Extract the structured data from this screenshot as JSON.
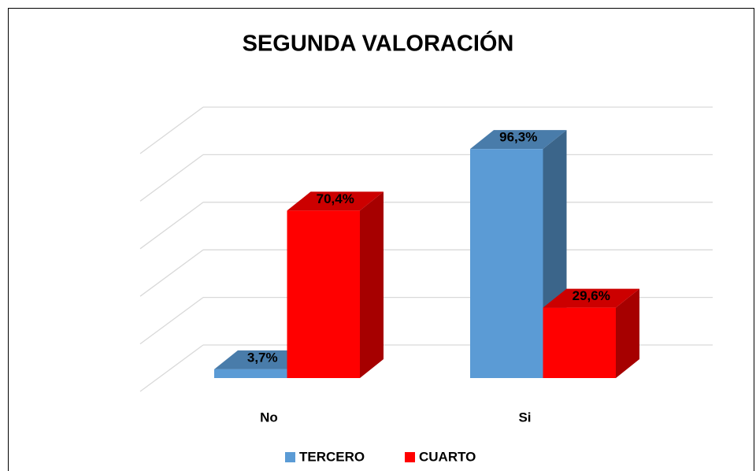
{
  "chart_data": {
    "type": "bar3d",
    "title": "SEGUNDA VALORACIÓN",
    "categories": [
      "No",
      "Si"
    ],
    "series": [
      {
        "name": "TERCERO",
        "color": "#5b9bd5",
        "values": [
          3.7,
          96.3
        ],
        "value_labels": [
          "3,7%",
          "96,3%"
        ]
      },
      {
        "name": "CUARTO",
        "color": "#ff0000",
        "values": [
          70.4,
          29.6
        ],
        "value_labels": [
          "70,4%",
          "29,6%"
        ]
      }
    ],
    "ylim": [
      0,
      100
    ],
    "yticks": [
      0,
      20,
      40,
      60,
      80,
      100
    ],
    "grid": true,
    "legend": "bottom"
  }
}
